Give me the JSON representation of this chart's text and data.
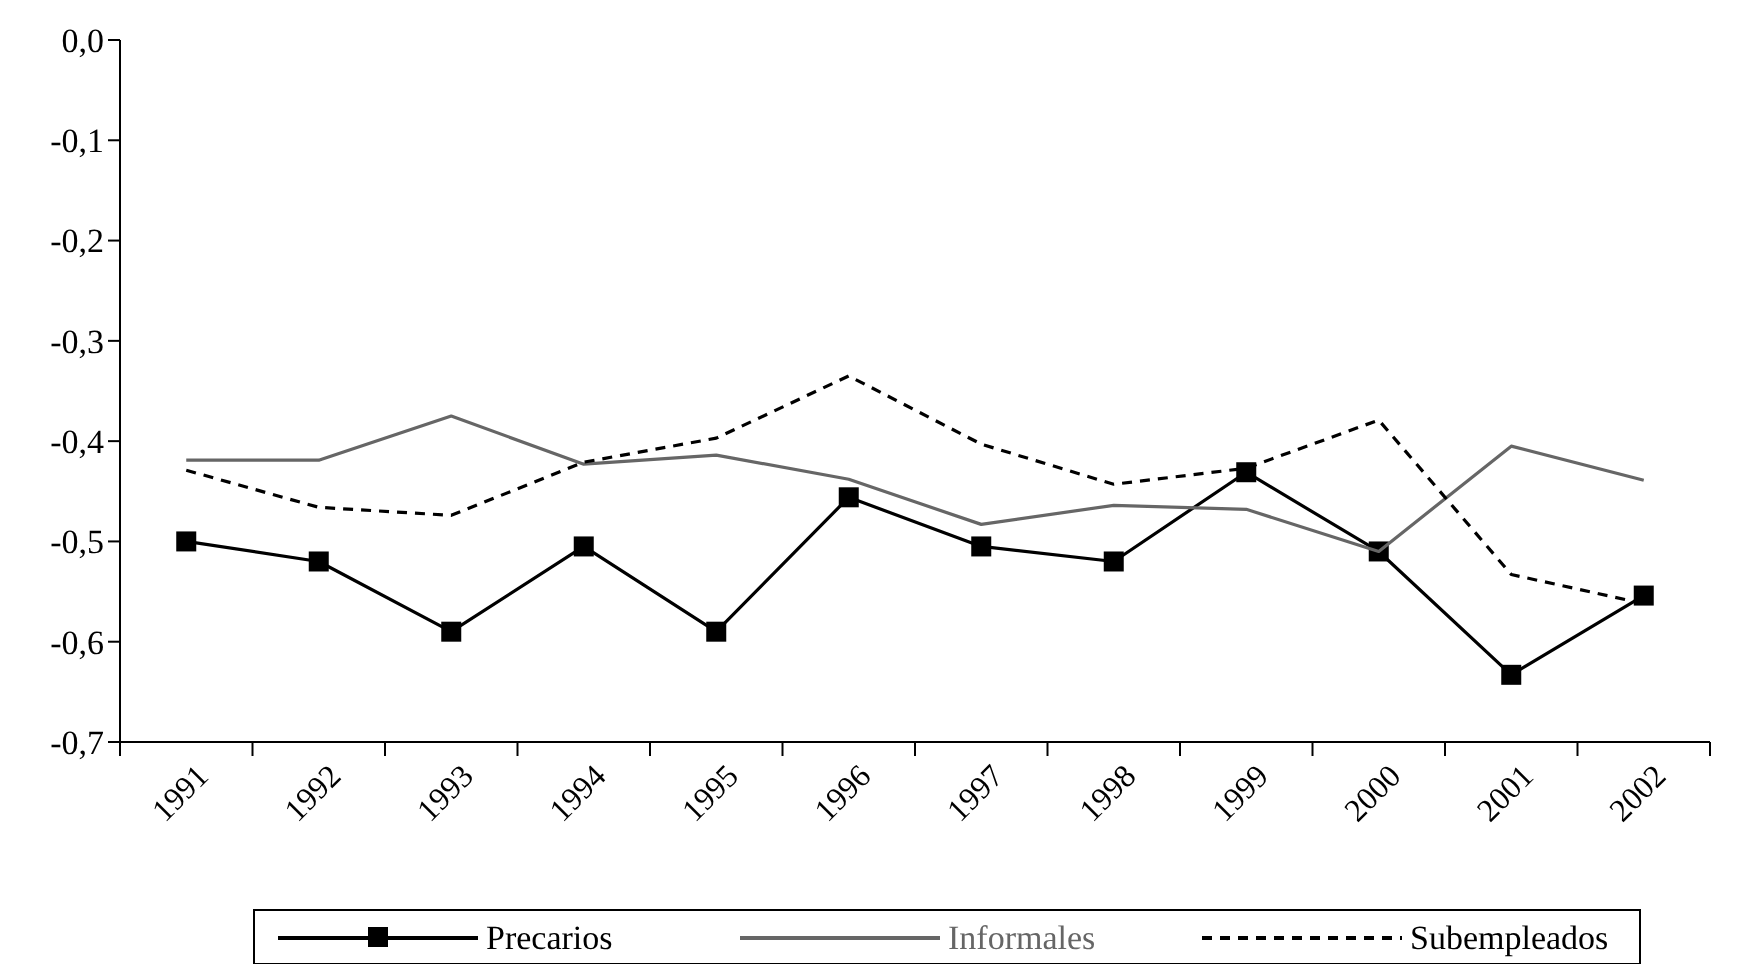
{
  "chart_data": {
    "type": "line",
    "categories": [
      "1991",
      "1992",
      "1993",
      "1994",
      "1995",
      "1996",
      "1997",
      "1998",
      "1999",
      "2000",
      "2001",
      "2002"
    ],
    "series": [
      {
        "name": "Precarios",
        "color": "#000000",
        "marker": "square",
        "line_style": "solid",
        "values": [
          -0.5,
          -0.52,
          -0.59,
          -0.505,
          -0.59,
          -0.456,
          -0.505,
          -0.52,
          -0.431,
          -0.51,
          -0.633,
          -0.554
        ]
      },
      {
        "name": "Informales",
        "color": "#666666",
        "marker": "none",
        "line_style": "solid",
        "values": [
          -0.419,
          -0.419,
          -0.375,
          -0.423,
          -0.414,
          -0.438,
          -0.483,
          -0.464,
          -0.468,
          -0.51,
          -0.405,
          -0.439
        ]
      },
      {
        "name": "Subempleados",
        "color": "#000000",
        "marker": "none",
        "line_style": "dashed",
        "values": [
          -0.429,
          -0.466,
          -0.474,
          -0.421,
          -0.397,
          -0.335,
          -0.403,
          -0.443,
          -0.427,
          -0.379,
          -0.533,
          -0.562
        ]
      }
    ],
    "ylim": [
      -0.7,
      0
    ],
    "yticks": [
      {
        "value": -0.7,
        "label": "-0,7"
      },
      {
        "value": -0.6,
        "label": "-0,6"
      },
      {
        "value": -0.5,
        "label": "-0,5"
      },
      {
        "value": -0.4,
        "label": "-0,4"
      },
      {
        "value": -0.3,
        "label": "-0,3"
      },
      {
        "value": -0.2,
        "label": "-0,2"
      },
      {
        "value": -0.1,
        "label": "-0,1"
      },
      {
        "value": 0,
        "label": "0,0"
      }
    ],
    "grid": false,
    "legend": "bottom"
  }
}
